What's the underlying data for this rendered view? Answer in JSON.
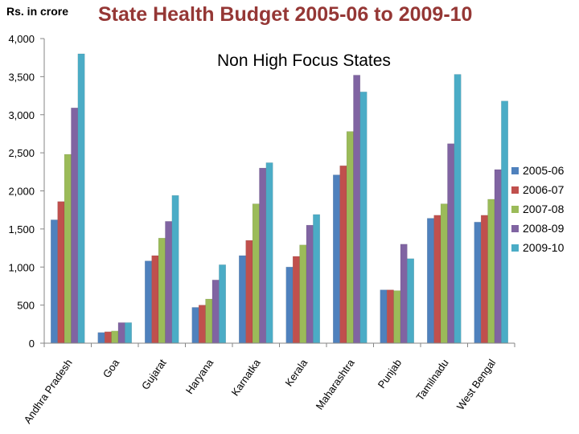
{
  "unit_label": "Rs. in crore",
  "chart_data": {
    "type": "bar",
    "title": "State Health Budget 2005-06 to 2009-10",
    "subtitle": "Non High Focus States",
    "xlabel": "",
    "ylabel": "Rs. in crore",
    "ylim": [
      0,
      4000
    ],
    "yticks": [
      "0",
      "500",
      "1,000",
      "1,500",
      "2,000",
      "2,500",
      "3,000",
      "3,500",
      "4,000"
    ],
    "legend_position": "right",
    "categories": [
      "Andhra Pradesh",
      "Goa",
      "Gujarat",
      "Haryana",
      "Karnatka",
      "Kerala",
      "Maharashtra",
      "Punjab",
      "Tamilnadu",
      "West Bengal"
    ],
    "series": [
      {
        "name": "2005-06",
        "color": "#4f81bd",
        "values": [
          1620,
          140,
          1080,
          470,
          1150,
          1000,
          2210,
          700,
          1640,
          1590
        ]
      },
      {
        "name": "2006-07",
        "color": "#c0504d",
        "values": [
          1860,
          150,
          1150,
          500,
          1350,
          1140,
          2330,
          700,
          1680,
          1680
        ]
      },
      {
        "name": "2007-08",
        "color": "#9bbb59",
        "values": [
          2480,
          160,
          1380,
          580,
          1830,
          1290,
          2780,
          690,
          1830,
          1890
        ]
      },
      {
        "name": "2008-09",
        "color": "#8064a2",
        "values": [
          3090,
          270,
          1600,
          830,
          2300,
          1550,
          3520,
          1300,
          2620,
          2280
        ]
      },
      {
        "name": "2009-10",
        "color": "#4bacc6",
        "values": [
          3800,
          270,
          1940,
          1030,
          2370,
          1690,
          3300,
          1110,
          3530,
          3180
        ]
      }
    ]
  }
}
